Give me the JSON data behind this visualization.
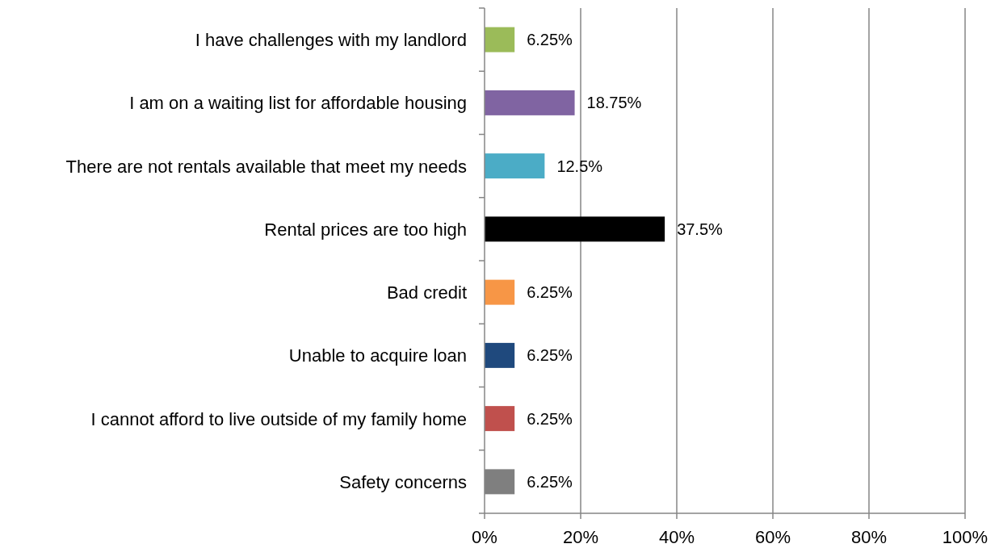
{
  "chart_data": {
    "type": "bar",
    "orientation": "horizontal",
    "categories": [
      "I have challenges with my landlord",
      "I am on a waiting list for affordable housing",
      "There are not rentals available that meet my needs",
      "Rental prices are too high",
      "Bad credit",
      "Unable to acquire loan",
      "I cannot afford to live outside of my family home",
      "Safety concerns"
    ],
    "values": [
      6.25,
      18.75,
      12.5,
      37.5,
      6.25,
      6.25,
      6.25,
      6.25
    ],
    "colors": [
      "#9bbb59",
      "#8064a2",
      "#4bacc6",
      "#000000",
      "#f79646",
      "#1f497d",
      "#c0504d",
      "#7f7f7f"
    ],
    "value_labels": [
      "6.25%",
      "18.75%",
      "12.5%",
      "37.5%",
      "6.25%",
      "6.25%",
      "6.25%",
      "6.25%"
    ],
    "xlim": [
      0,
      100
    ],
    "xticks": [
      {
        "value": 0,
        "label": "0%"
      },
      {
        "value": 20,
        "label": "20%"
      },
      {
        "value": 40,
        "label": "40%"
      },
      {
        "value": 60,
        "label": "60%"
      },
      {
        "value": 80,
        "label": "80%"
      },
      {
        "value": 100,
        "label": "100%"
      }
    ],
    "grid": "x"
  }
}
